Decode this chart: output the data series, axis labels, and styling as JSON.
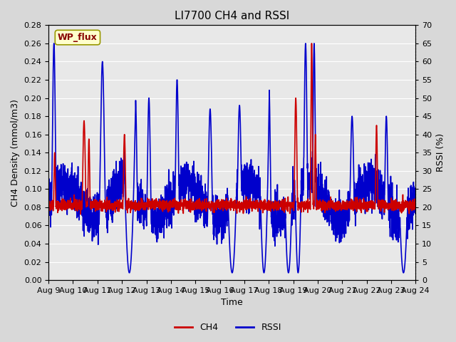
{
  "title": "LI7700 CH4 and RSSI",
  "xlabel": "Time",
  "ylabel_left": "CH4 Density (mmol/m3)",
  "ylabel_right": "RSSI (%)",
  "ch4_ylim": [
    0.0,
    0.28
  ],
  "rssi_ylim": [
    0,
    70
  ],
  "ch4_yticks": [
    0.0,
    0.02,
    0.04,
    0.06,
    0.08,
    0.1,
    0.12,
    0.14,
    0.16,
    0.18,
    0.2,
    0.22,
    0.24,
    0.26,
    0.28
  ],
  "rssi_yticks": [
    0,
    5,
    10,
    15,
    20,
    25,
    30,
    35,
    40,
    45,
    50,
    55,
    60,
    65,
    70
  ],
  "xtick_labels": [
    "Aug 9",
    "Aug 10",
    "Aug 11",
    "Aug 12",
    "Aug 13",
    "Aug 14",
    "Aug 15",
    "Aug 16",
    "Aug 17",
    "Aug 18",
    "Aug 19",
    "Aug 20",
    "Aug 21",
    "Aug 22",
    "Aug 23",
    "Aug 24"
  ],
  "legend_labels": [
    "CH4",
    "RSSI"
  ],
  "ch4_color": "#cc0000",
  "rssi_color": "#0000cc",
  "fig_bg": "#d8d8d8",
  "plot_bg": "#e8e8e8",
  "title_fontsize": 11,
  "axis_fontsize": 9,
  "tick_fontsize": 8,
  "legend_fontsize": 9,
  "ch4_linewidth": 1.2,
  "rssi_linewidth": 1.2,
  "site_label": "WP_flux",
  "site_label_bg": "#ffffcc",
  "site_label_border": "#999900",
  "site_label_color": "#880000",
  "n_points": 3000,
  "seed": 42
}
